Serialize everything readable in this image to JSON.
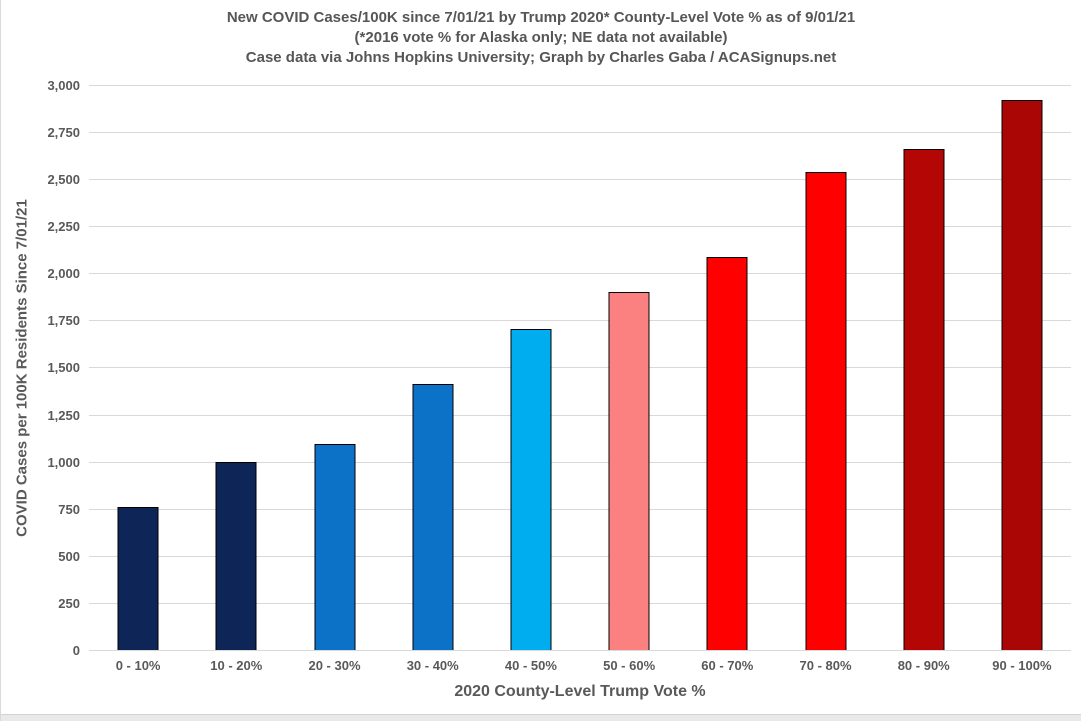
{
  "title": {
    "line1": "New COVID Cases/100K since 7/01/21 by Trump 2020* County-Level Vote % as of 9/01/21",
    "line2": "(*2016 vote % for Alaska only; NE data not available)",
    "line3": "Case data via Johns Hopkins University; Graph by Charles Gaba / ACASignups.net"
  },
  "chart_data": {
    "type": "bar",
    "title": "New COVID Cases/100K since 7/01/21 by Trump 2020* County-Level Vote % as of 9/01/21",
    "subtitle": "(*2016 vote % for Alaska only; NE data not available)",
    "attribution": "Case data via Johns Hopkins University; Graph by Charles Gaba / ACASignups.net",
    "categories": [
      "0 - 10%",
      "10 - 20%",
      "20 - 30%",
      "30 - 40%",
      "40 - 50%",
      "50 - 60%",
      "60 - 70%",
      "70 - 80%",
      "80 - 90%",
      "90 - 100%"
    ],
    "values": [
      760,
      1000,
      1095,
      1410,
      1705,
      1900,
      2085,
      2540,
      2660,
      2920
    ],
    "bar_colors": [
      "#0d2557",
      "#0d2557",
      "#0b72c7",
      "#0b72c7",
      "#00aeef",
      "#fb8080",
      "#fe0000",
      "#fe0000",
      "#b50606",
      "#aa0606"
    ],
    "xlabel": "2020 County-Level Trump Vote %",
    "ylabel": "COVID Cases per 100K Residents Since 7/01/21",
    "ylim": [
      0,
      3000
    ],
    "ytick_step": 250,
    "ytick_labels": [
      "0",
      "250",
      "500",
      "750",
      "1,000",
      "1,250",
      "1,500",
      "1,750",
      "2,000",
      "2,250",
      "2,500",
      "2,750",
      "3,000"
    ],
    "grid": "horizontal",
    "gridline_color": "#d9d9d9",
    "legend_position": "none"
  },
  "colors": {
    "title_text": "#565656",
    "axis_text": "#595959",
    "bar_outline": "#000000",
    "background": "#ffffff"
  }
}
